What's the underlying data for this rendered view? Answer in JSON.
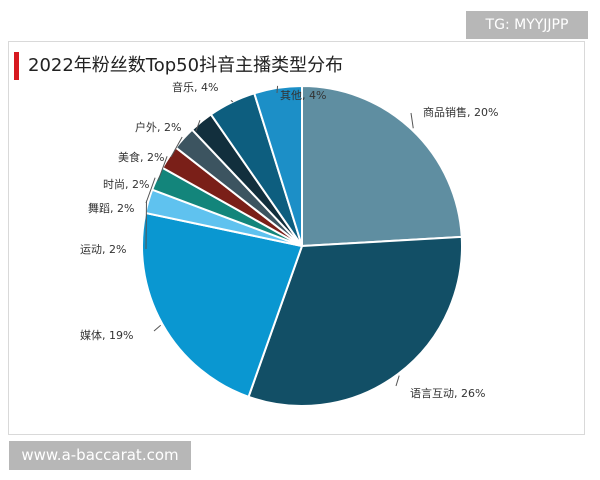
{
  "watermarks": {
    "top": "TG: MYYJJPP",
    "bottom": "www.a-baccarat.com"
  },
  "chart_data": {
    "type": "pie",
    "title": "2022年粉丝数Top50抖音主播类型分布",
    "slices": [
      {
        "label": "商品销售, 20%",
        "value": 20,
        "color": "#5f8ea1"
      },
      {
        "label": "语言互动, 26%",
        "value": 26,
        "color": "#124f66"
      },
      {
        "label": "媒体, 19%",
        "value": 19,
        "color": "#0a97d1"
      },
      {
        "label": "运动, 2%",
        "value": 2,
        "color": "#5fc2ef"
      },
      {
        "label": "舞蹈, 2%",
        "value": 2,
        "color": "#13857b"
      },
      {
        "label": "时尚, 2%",
        "value": 2,
        "color": "#7a1f18"
      },
      {
        "label": "美食, 2%",
        "value": 2,
        "color": "#3c5460"
      },
      {
        "label": "户外, 2%",
        "value": 2,
        "color": "#122f3d"
      },
      {
        "label": "音乐, 4%",
        "value": 4,
        "color": "#0d5e7f"
      },
      {
        "label": "其他, 4%",
        "value": 4,
        "color": "#1c8fc7"
      }
    ]
  }
}
